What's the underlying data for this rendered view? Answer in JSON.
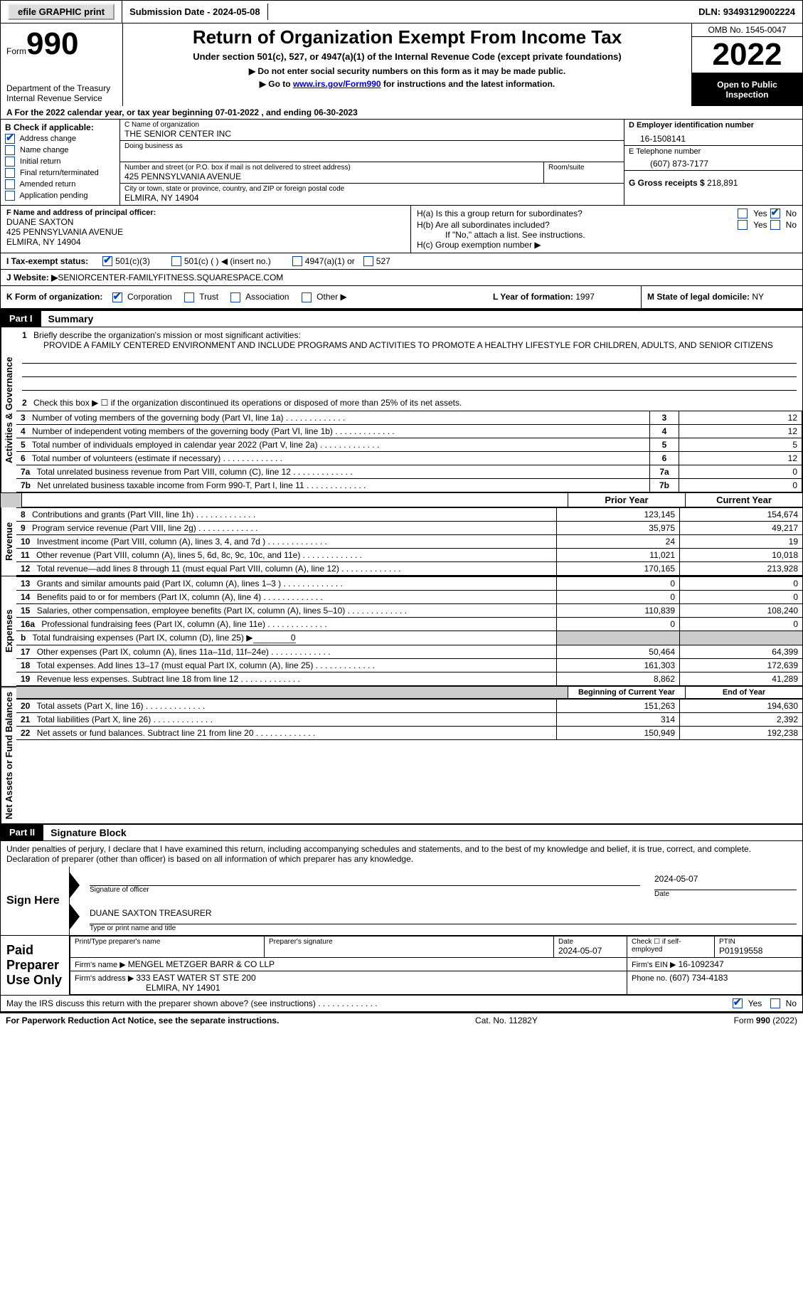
{
  "topbar": {
    "efile": "efile GRAPHIC print",
    "submission_label": "Submission Date - ",
    "submission_date": "2024-05-08",
    "dln_label": "DLN: ",
    "dln": "93493129002224"
  },
  "header": {
    "form_word": "Form",
    "form_num": "990",
    "dept": "Department of the Treasury",
    "irs": "Internal Revenue Service",
    "title": "Return of Organization Exempt From Income Tax",
    "subtitle": "Under section 501(c), 527, or 4947(a)(1) of the Internal Revenue Code (except private foundations)",
    "note1": "▶ Do not enter social security numbers on this form as it may be made public.",
    "note2_pre": "▶ Go to ",
    "note2_link": "www.irs.gov/Form990",
    "note2_post": " for instructions and the latest information.",
    "omb": "OMB No. 1545-0047",
    "year": "2022",
    "otp": "Open to Public Inspection"
  },
  "row_a": "A For the 2022 calendar year, or tax year beginning 07-01-2022   , and ending 06-30-2023",
  "section_b": {
    "b_label": "B Check if applicable:",
    "b_items": [
      "Address change",
      "Name change",
      "Initial return",
      "Final return/terminated",
      "Amended return",
      "Application pending"
    ],
    "b_checked": [
      true,
      false,
      false,
      false,
      false,
      false
    ],
    "c_label": "C Name of organization",
    "c_name": "THE SENIOR CENTER INC",
    "dba_label": "Doing business as",
    "dba": "",
    "addr_label": "Number and street (or P.O. box if mail is not delivered to street address)",
    "room_label": "Room/suite",
    "addr": "425 PENNSYLVANIA AVENUE",
    "city_label": "City or town, state or province, country, and ZIP or foreign postal code",
    "city": "ELMIRA, NY  14904",
    "d_label": "D Employer identification number",
    "d_ein": "16-1508141",
    "e_label": "E Telephone number",
    "e_phone": "(607) 873-7177",
    "g_label": "G Gross receipts $ ",
    "g_val": "218,891",
    "f_label": "F  Name and address of principal officer:",
    "f_name": "DUANE SAXTON",
    "f_addr1": "425 PENNSYLVANIA AVENUE",
    "f_addr2": "ELMIRA, NY  14904",
    "ha_label": "H(a)  Is this a group return for subordinates?",
    "hb_label": "H(b)  Are all subordinates included?",
    "h_note": "If \"No,\" attach a list. See instructions.",
    "hc_label": "H(c)  Group exemption number ▶",
    "yes": "Yes",
    "no": "No"
  },
  "tax_row": {
    "i_label": "I     Tax-exempt status:",
    "c3": "501(c)(3)",
    "c_other": "501(c) (  ) ◀ (insert no.)",
    "a4947": "4947(a)(1) or",
    "s527": "527"
  },
  "web_row": {
    "j_label": "J   Website: ▶",
    "j_val": "  SENIORCENTER-FAMILYFITNESS.SQUARESPACE.COM"
  },
  "k_row": {
    "k_label": "K Form of organization:",
    "k_corp": "Corporation",
    "k_trust": "Trust",
    "k_assoc": "Association",
    "k_other": "Other ▶",
    "l_label": "L Year of formation: ",
    "l_val": "1997",
    "m_label": "M State of legal domicile: ",
    "m_val": "NY"
  },
  "part1": {
    "hdr": "Part I",
    "title": "Summary",
    "vert1": "Activities & Governance",
    "line1_label": "Briefly describe the organization's mission or most significant activities:",
    "line1_text": "PROVIDE A FAMILY CENTERED ENVIRONMENT AND INCLUDE PROGRAMS AND ACTIVITIES TO PROMOTE A HEALTHY LIFESTYLE FOR CHILDREN, ADULTS, AND SENIOR CITIZENS",
    "line2": "Check this box ▶ ☐ if the organization discontinued its operations or disposed of more than 25% of its net assets.",
    "rows_ag": [
      {
        "n": "3",
        "label": "Number of voting members of the governing body (Part VI, line 1a)",
        "val": "12"
      },
      {
        "n": "4",
        "label": "Number of independent voting members of the governing body (Part VI, line 1b)",
        "val": "12"
      },
      {
        "n": "5",
        "label": "Total number of individuals employed in calendar year 2022 (Part V, line 2a)",
        "val": "5"
      },
      {
        "n": "6",
        "label": "Total number of volunteers (estimate if necessary)",
        "val": "12"
      },
      {
        "n": "7a",
        "label": "Total unrelated business revenue from Part VIII, column (C), line 12",
        "val": "0"
      },
      {
        "n": "7b",
        "label": "Net unrelated business taxable income from Form 990-T, Part I, line 11",
        "val": "0"
      }
    ],
    "col_py": "Prior Year",
    "col_cy": "Current Year",
    "vert2": "Revenue",
    "rows_rev": [
      {
        "n": "8",
        "label": "Contributions and grants (Part VIII, line 1h)",
        "py": "123,145",
        "cy": "154,674"
      },
      {
        "n": "9",
        "label": "Program service revenue (Part VIII, line 2g)",
        "py": "35,975",
        "cy": "49,217"
      },
      {
        "n": "10",
        "label": "Investment income (Part VIII, column (A), lines 3, 4, and 7d )",
        "py": "24",
        "cy": "19"
      },
      {
        "n": "11",
        "label": "Other revenue (Part VIII, column (A), lines 5, 6d, 8c, 9c, 10c, and 11e)",
        "py": "11,021",
        "cy": "10,018"
      },
      {
        "n": "12",
        "label": "Total revenue—add lines 8 through 11 (must equal Part VIII, column (A), line 12)",
        "py": "170,165",
        "cy": "213,928"
      }
    ],
    "vert3": "Expenses",
    "rows_exp": [
      {
        "n": "13",
        "label": "Grants and similar amounts paid (Part IX, column (A), lines 1–3 )",
        "py": "0",
        "cy": "0"
      },
      {
        "n": "14",
        "label": "Benefits paid to or for members (Part IX, column (A), line 4)",
        "py": "0",
        "cy": "0"
      },
      {
        "n": "15",
        "label": "Salaries, other compensation, employee benefits (Part IX, column (A), lines 5–10)",
        "py": "110,839",
        "cy": "108,240"
      },
      {
        "n": "16a",
        "label": "Professional fundraising fees (Part IX, column (A), line 11e)",
        "py": "0",
        "cy": "0"
      },
      {
        "n": "b",
        "label": "Total fundraising expenses (Part IX, column (D), line 25) ▶",
        "extra": "0",
        "py": "",
        "cy": "",
        "shade": true
      },
      {
        "n": "17",
        "label": "Other expenses (Part IX, column (A), lines 11a–11d, 11f–24e)",
        "py": "50,464",
        "cy": "64,399"
      },
      {
        "n": "18",
        "label": "Total expenses. Add lines 13–17 (must equal Part IX, column (A), line 25)",
        "py": "161,303",
        "cy": "172,639"
      },
      {
        "n": "19",
        "label": "Revenue less expenses. Subtract line 18 from line 12",
        "py": "8,862",
        "cy": "41,289"
      }
    ],
    "vert4": "Net Assets or Fund Balances",
    "col_boy": "Beginning of Current Year",
    "col_eoy": "End of Year",
    "rows_na": [
      {
        "n": "20",
        "label": "Total assets (Part X, line 16)",
        "py": "151,263",
        "cy": "194,630"
      },
      {
        "n": "21",
        "label": "Total liabilities (Part X, line 26)",
        "py": "314",
        "cy": "2,392"
      },
      {
        "n": "22",
        "label": "Net assets or fund balances. Subtract line 21 from line 20",
        "py": "150,949",
        "cy": "192,238"
      }
    ]
  },
  "part2": {
    "hdr": "Part II",
    "title": "Signature Block",
    "declaration": "Under penalties of perjury, I declare that I have examined this return, including accompanying schedules and statements, and to the best of my knowledge and belief, it is true, correct, and complete. Declaration of preparer (other than officer) is based on all information of which preparer has any knowledge.",
    "sign_here": "Sign Here",
    "sig_officer": "Signature of officer",
    "sig_date": "2024-05-07",
    "date_label": "Date",
    "officer_name": "DUANE SAXTON  TREASURER",
    "type_label": "Type or print name and title",
    "paid": "Paid Preparer Use Only",
    "prep_name_label": "Print/Type preparer's name",
    "prep_sig_label": "Preparer's signature",
    "prep_date_label": "Date",
    "prep_date": "2024-05-07",
    "check_self": "Check ☐ if self-employed",
    "ptin_label": "PTIN",
    "ptin": "P01919558",
    "firm_name_label": "Firm's name    ▶ ",
    "firm_name": "MENGEL METZGER BARR & CO LLP",
    "firm_ein_label": "Firm's EIN ▶ ",
    "firm_ein": "16-1092347",
    "firm_addr_label": "Firm's address ▶ ",
    "firm_addr1": "333 EAST WATER ST STE 200",
    "firm_addr2": "ELMIRA, NY  14901",
    "firm_phone_label": "Phone no. ",
    "firm_phone": "(607) 734-4183",
    "discuss": "May the IRS discuss this return with the preparer shown above? (see instructions)"
  },
  "footer": {
    "pra": "For Paperwork Reduction Act Notice, see the separate instructions.",
    "cat": "Cat. No. 11282Y",
    "form": "Form 990 (2022)"
  }
}
